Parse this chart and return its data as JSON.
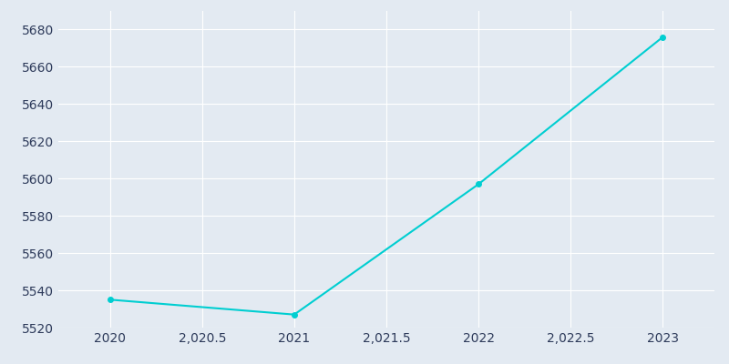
{
  "x": [
    2020,
    2021,
    2022,
    2023
  ],
  "y": [
    5535,
    5527,
    5597,
    5676
  ],
  "line_color": "#00CED1",
  "marker": "o",
  "marker_size": 4,
  "background_color": "#E3EAF2",
  "grid_color": "#FFFFFF",
  "axes_face_color": "#E3EAF2",
  "figure_face_color": "#E3EAF2",
  "tick_color": "#2D3A5A",
  "ylim": [
    5520,
    5690
  ],
  "ytick_step": 20,
  "xlim": [
    2019.72,
    2023.28
  ],
  "xtick_start": 2020,
  "xtick_step": 0.5
}
